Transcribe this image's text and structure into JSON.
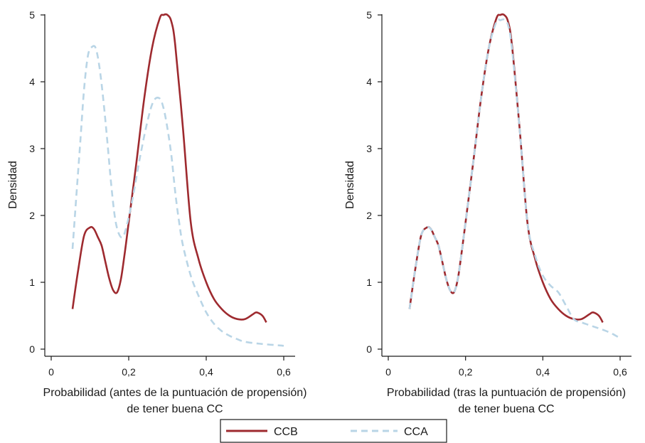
{
  "chart_data": [
    {
      "type": "line",
      "title": "",
      "xlabel": "Probabilidad (antes de la puntuación de propensión)",
      "xlabel2": "de tener buena CC",
      "ylabel": "Densidad",
      "xlim": [
        0,
        0.6
      ],
      "ylim": [
        0,
        5
      ],
      "x_ticks": [
        "0",
        "0,2",
        "0,4",
        "0,6"
      ],
      "y_ticks": [
        "0",
        "1",
        "2",
        "3",
        "4",
        "5"
      ],
      "grid": false,
      "series": [
        {
          "name": "CCB",
          "color": "#9e2a2f",
          "style": "solid",
          "x": [
            0.055,
            0.07,
            0.085,
            0.1,
            0.11,
            0.12,
            0.13,
            0.14,
            0.15,
            0.16,
            0.17,
            0.18,
            0.19,
            0.2,
            0.22,
            0.24,
            0.26,
            0.28,
            0.29,
            0.3,
            0.31,
            0.32,
            0.34,
            0.36,
            0.38,
            0.4,
            0.42,
            0.44,
            0.46,
            0.48,
            0.5,
            0.52,
            0.53,
            0.545,
            0.555
          ],
          "y": [
            0.6,
            1.2,
            1.7,
            1.82,
            1.8,
            1.68,
            1.55,
            1.3,
            1.05,
            0.88,
            0.85,
            1.05,
            1.45,
            1.9,
            2.8,
            3.75,
            4.5,
            4.95,
            5.0,
            5.0,
            4.9,
            4.55,
            3.3,
            1.9,
            1.35,
            1.0,
            0.75,
            0.6,
            0.5,
            0.45,
            0.45,
            0.52,
            0.55,
            0.5,
            0.4
          ]
        },
        {
          "name": "CCA",
          "color": "#b9d5e6",
          "style": "dashed",
          "x": [
            0.055,
            0.065,
            0.075,
            0.085,
            0.095,
            0.105,
            0.115,
            0.125,
            0.135,
            0.145,
            0.155,
            0.165,
            0.175,
            0.185,
            0.195,
            0.21,
            0.23,
            0.25,
            0.265,
            0.28,
            0.29,
            0.3,
            0.31,
            0.32,
            0.33,
            0.34,
            0.36,
            0.38,
            0.4,
            0.42,
            0.44,
            0.46,
            0.48,
            0.5,
            0.54,
            0.58,
            0.6
          ],
          "y": [
            1.5,
            2.3,
            3.1,
            3.9,
            4.4,
            4.52,
            4.5,
            4.2,
            3.7,
            3.1,
            2.45,
            1.95,
            1.72,
            1.68,
            1.85,
            2.25,
            2.9,
            3.45,
            3.72,
            3.75,
            3.6,
            3.3,
            2.9,
            2.35,
            1.9,
            1.55,
            1.1,
            0.8,
            0.55,
            0.38,
            0.27,
            0.2,
            0.15,
            0.11,
            0.08,
            0.06,
            0.05
          ]
        }
      ]
    },
    {
      "type": "line",
      "title": "",
      "xlabel": "Probabilidad (tras la puntuación de propensión)",
      "xlabel2": "de tener buena CC",
      "ylabel": "Densidad",
      "xlim": [
        0,
        0.6
      ],
      "ylim": [
        0,
        5
      ],
      "x_ticks": [
        "0",
        "0,2",
        "0,4",
        "0,6"
      ],
      "y_ticks": [
        "0",
        "1",
        "2",
        "3",
        "4",
        "5"
      ],
      "grid": false,
      "series": [
        {
          "name": "CCB",
          "color": "#9e2a2f",
          "style": "solid",
          "x": [
            0.055,
            0.07,
            0.085,
            0.1,
            0.11,
            0.12,
            0.13,
            0.14,
            0.15,
            0.16,
            0.17,
            0.18,
            0.19,
            0.2,
            0.22,
            0.24,
            0.26,
            0.28,
            0.29,
            0.3,
            0.31,
            0.32,
            0.34,
            0.36,
            0.38,
            0.4,
            0.42,
            0.44,
            0.46,
            0.48,
            0.5,
            0.52,
            0.53,
            0.545,
            0.555
          ],
          "y": [
            0.6,
            1.2,
            1.7,
            1.82,
            1.8,
            1.68,
            1.55,
            1.3,
            1.05,
            0.88,
            0.85,
            1.05,
            1.45,
            1.9,
            2.8,
            3.75,
            4.5,
            4.95,
            5.0,
            5.0,
            4.9,
            4.55,
            3.3,
            1.9,
            1.35,
            1.0,
            0.75,
            0.6,
            0.5,
            0.45,
            0.45,
            0.52,
            0.55,
            0.5,
            0.4
          ]
        },
        {
          "name": "CCA",
          "color": "#b9d5e6",
          "style": "dashed",
          "x": [
            0.055,
            0.07,
            0.085,
            0.1,
            0.11,
            0.12,
            0.13,
            0.14,
            0.15,
            0.16,
            0.17,
            0.18,
            0.19,
            0.2,
            0.22,
            0.24,
            0.26,
            0.28,
            0.29,
            0.3,
            0.31,
            0.32,
            0.34,
            0.36,
            0.38,
            0.4,
            0.42,
            0.44,
            0.46,
            0.48,
            0.5,
            0.52,
            0.54,
            0.56,
            0.58,
            0.595
          ],
          "y": [
            0.6,
            1.2,
            1.7,
            1.82,
            1.8,
            1.68,
            1.55,
            1.3,
            1.05,
            0.88,
            0.85,
            1.05,
            1.45,
            1.9,
            2.8,
            3.75,
            4.5,
            4.9,
            4.92,
            4.93,
            4.85,
            4.5,
            3.3,
            1.9,
            1.4,
            1.1,
            0.95,
            0.85,
            0.65,
            0.45,
            0.4,
            0.36,
            0.32,
            0.28,
            0.23,
            0.18
          ]
        }
      ]
    }
  ],
  "legend": {
    "placement": "bottom",
    "items": [
      {
        "label": "CCB",
        "color": "#9e2a2f",
        "style": "solid"
      },
      {
        "label": "CCA",
        "color": "#b9d5e6",
        "style": "dashed"
      }
    ]
  }
}
